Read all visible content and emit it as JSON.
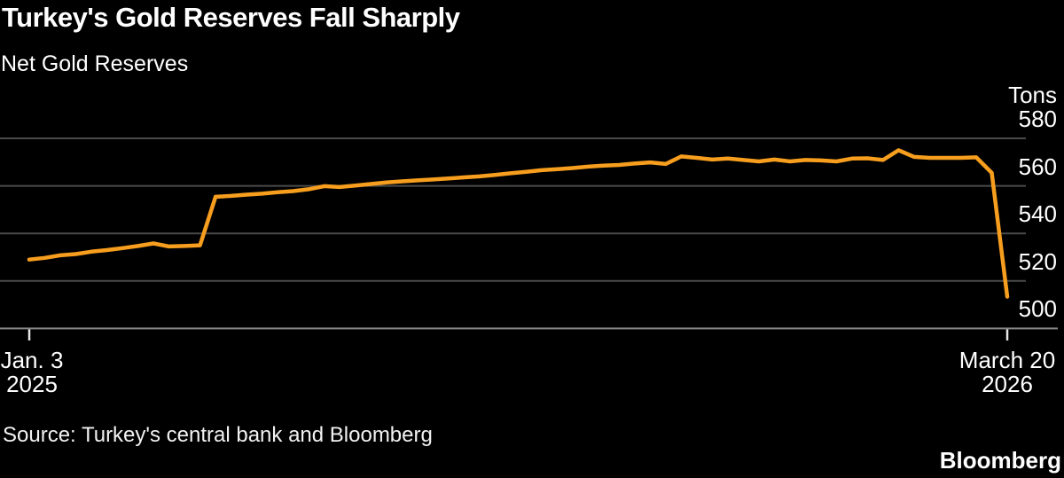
{
  "footer": {
    "source_text": "Source: Turkey's central bank and Bloomberg",
    "logo_text": "Bloomberg"
  },
  "colors": {
    "background": "#000000",
    "text": "#ffffff",
    "line": "#f79e1e",
    "grid": "#4a4a4a",
    "axis_line": "#8a8a8a",
    "tick": "#e8e8e8"
  },
  "chart_data": {
    "type": "line",
    "title": "Turkey's Gold Reserves Fall Sharply",
    "subtitle": "Net Gold Reserves",
    "unit_label": "Tons",
    "ylabel": "Tons",
    "y_ticks": [
      580,
      560,
      540,
      520,
      500
    ],
    "ylim": [
      497,
      588
    ],
    "grid": "horizontal",
    "legend": "none",
    "x_axis": {
      "first_tick": {
        "line1": "Jan. 3",
        "line2": "2025"
      },
      "last_tick": {
        "line1": "March 20",
        "line2": "2026"
      }
    },
    "x_range_description": "weekly data from Jan. 3 2025 to March 20 2026",
    "series": [
      {
        "name": "Net Gold Reserves",
        "color": "#f79e1e",
        "values": [
          529,
          529.7,
          530.8,
          531.3,
          532.3,
          533,
          533.8,
          534.7,
          535.8,
          534.5,
          534.7,
          535,
          555.4,
          555.8,
          556.3,
          556.7,
          557.3,
          557.8,
          558.6,
          559.9,
          559.5,
          560.1,
          560.8,
          561.4,
          561.9,
          562.3,
          562.7,
          563.1,
          563.6,
          564,
          564.6,
          565.3,
          565.9,
          566.6,
          567,
          567.5,
          568.1,
          568.5,
          568.8,
          569.4,
          569.9,
          569.2,
          572.4,
          571.8,
          571.1,
          571.5,
          570.9,
          570.3,
          571.1,
          570.3,
          570.9,
          570.7,
          570.3,
          571.5,
          571.6,
          570.9,
          575,
          572.2,
          571.8,
          571.8,
          571.8,
          572,
          565.5,
          513.4
        ]
      }
    ]
  }
}
